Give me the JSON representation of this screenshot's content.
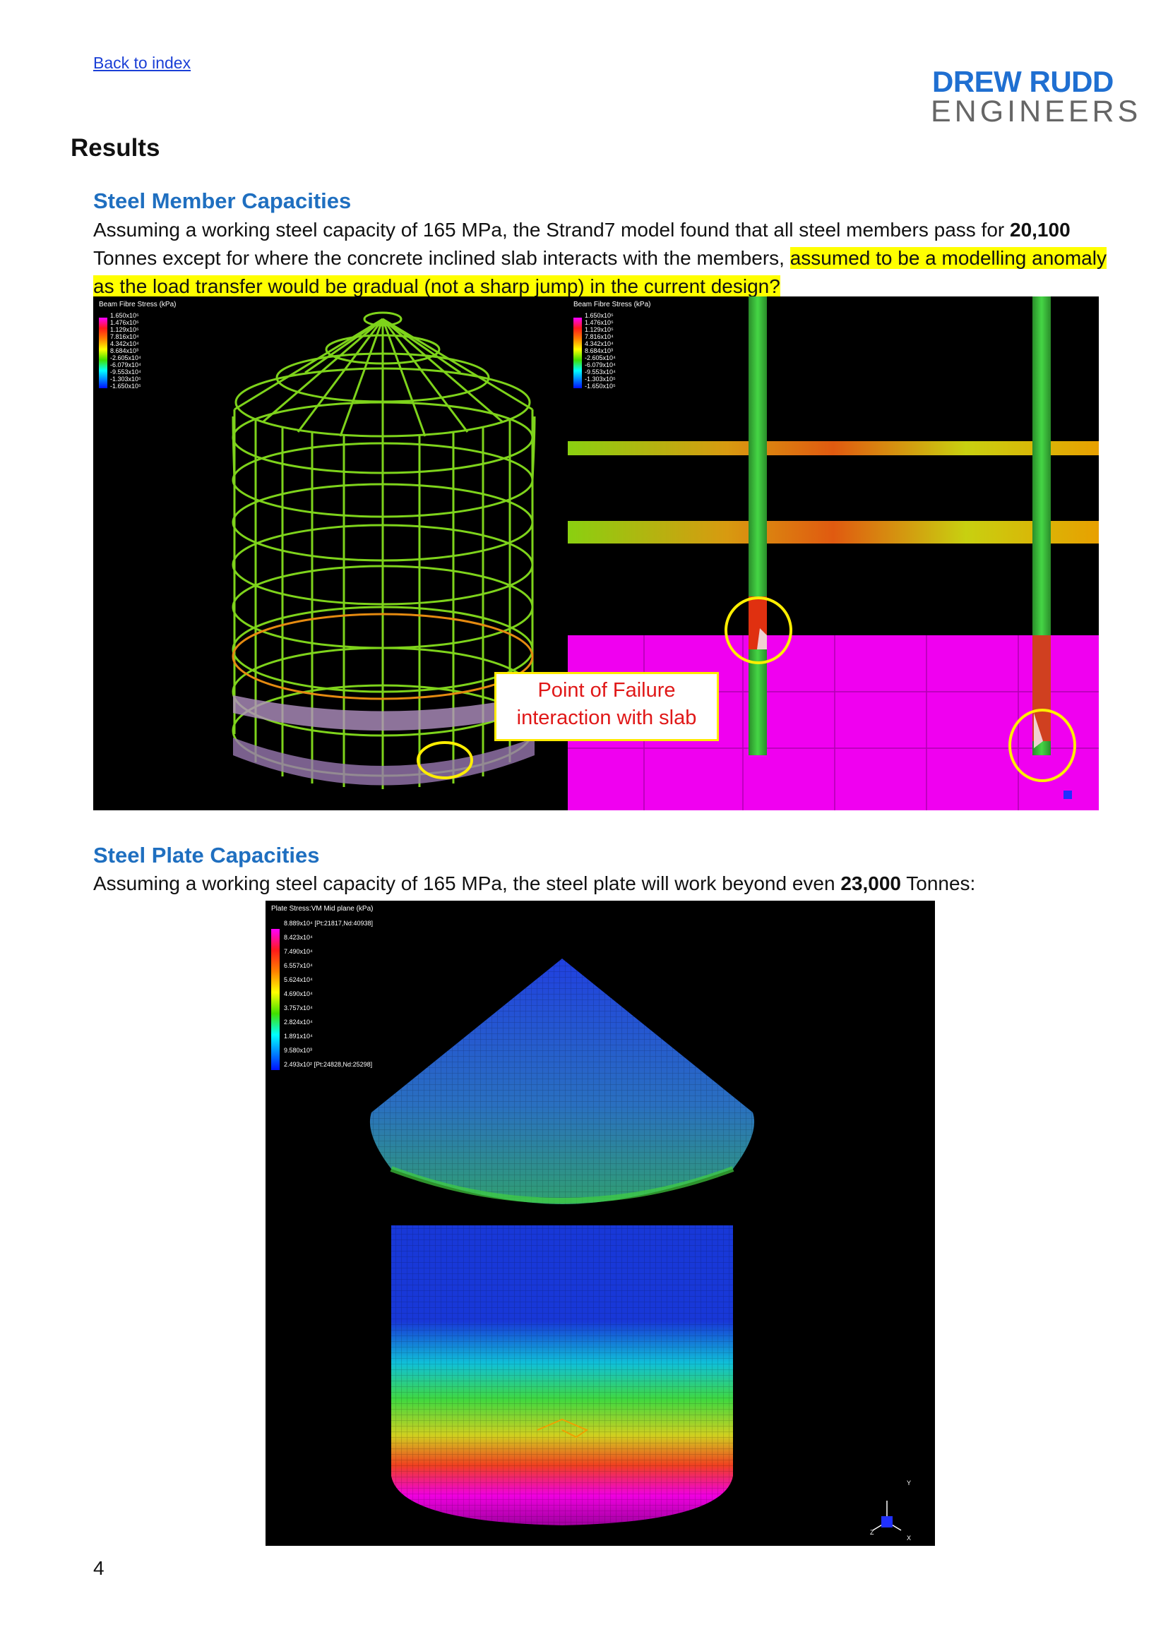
{
  "header": {
    "back_link": "Back to index",
    "logo_line1": "DREW RUDD",
    "logo_line2": "ENGINEERS"
  },
  "section_title": "Results",
  "member": {
    "heading": "Steel Member Capacities",
    "text_a": "Assuming a working steel capacity of 165 MPa, the Strand7 model found that all steel members pass for ",
    "tonnes": "20,100",
    "text_b": " Tonnes except for where the concrete inclined slab interacts with the members, ",
    "highlight": "assumed to be a modelling anomaly as the load transfer would be gradual (not a sharp jump) in the current design?"
  },
  "figure1": {
    "legend_title": "Beam Fibre Stress  (kPa)",
    "legend_values": [
      "1.650x10⁵",
      "1.476x10⁵",
      "1.129x10⁵",
      "7.816x10⁴",
      "4.342x10⁴",
      "8.684x10³",
      "-2.605x10⁴",
      "-6.079x10⁴",
      "-9.553x10⁴",
      "-1.303x10⁵",
      "-1.650x10⁵"
    ],
    "callout_line1": "Point of Failure",
    "callout_line2": "interaction with slab"
  },
  "plate": {
    "heading": "Steel Plate Capacities",
    "text_a": "Assuming a working steel capacity of 165 MPa, the steel plate will work beyond even ",
    "tonnes": "23,000",
    "text_b": " Tonnes:"
  },
  "figure2": {
    "legend_title": "Plate Stress:VM Mid plane  (kPa)",
    "legend_values": [
      "8.889x10⁴ [Pt:21817,Nd:40938]",
      "8.423x10⁴",
      "7.490x10⁴",
      "6.557x10⁴",
      "5.624x10⁴",
      "4.690x10⁴",
      "3.757x10⁴",
      "2.824x10⁴",
      "1.891x10⁴",
      "9.580x10³",
      "2.493x10² [Pt:24828,Nd:25298]"
    ],
    "axis_y": "Y",
    "axis_z": "Z",
    "axis_x": "X"
  },
  "footer": {
    "page_number": "4"
  },
  "colors": {
    "accent": "#1f6fc0",
    "highlight": "#ffff00",
    "callout_text": "#e01818",
    "callout_border": "#ffeb00"
  }
}
